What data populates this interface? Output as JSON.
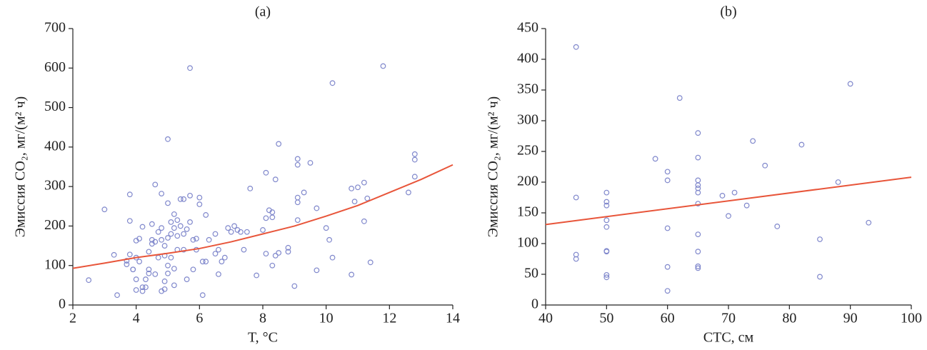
{
  "chart_data": [
    {
      "type": "scatter",
      "title": "(a)",
      "x_label": "T, °C",
      "y_label": "Эмиссия CO₂, мг/(м² ч)",
      "xlim": [
        2,
        14
      ],
      "xticks": [
        2,
        4,
        6,
        8,
        10,
        12,
        14
      ],
      "ylim": [
        0,
        700
      ],
      "yticks": [
        0,
        100,
        200,
        300,
        400,
        500,
        600,
        700
      ],
      "series": [
        {
          "color": "#8088cc",
          "x": [
            2.5,
            3.0,
            3.3,
            3.4,
            3.7,
            3.7,
            3.8,
            3.8,
            3.8,
            3.9,
            3.9,
            4.0,
            4.0,
            4.0,
            4.0,
            4.1,
            4.1,
            4.2,
            4.2,
            4.2,
            4.3,
            4.3,
            4.4,
            4.4,
            4.4,
            4.5,
            4.5,
            4.5,
            4.6,
            4.6,
            4.6,
            4.7,
            4.7,
            4.8,
            4.8,
            4.8,
            4.8,
            4.9,
            4.9,
            4.9,
            4.9,
            5.0,
            5.0,
            5.0,
            5.0,
            5.0,
            5.1,
            5.1,
            5.1,
            5.2,
            5.2,
            5.2,
            5.2,
            5.3,
            5.3,
            5.3,
            5.4,
            5.4,
            5.5,
            5.5,
            5.5,
            5.6,
            5.6,
            5.7,
            5.7,
            5.7,
            5.8,
            5.8,
            5.9,
            5.9,
            6.0,
            6.0,
            6.1,
            6.1,
            6.2,
            6.2,
            6.3,
            6.5,
            6.5,
            6.6,
            6.6,
            6.7,
            6.8,
            6.9,
            7.0,
            7.1,
            7.2,
            7.3,
            7.4,
            7.5,
            7.6,
            7.8,
            8.0,
            8.1,
            8.1,
            8.1,
            8.2,
            8.3,
            8.3,
            8.3,
            8.4,
            8.4,
            8.5,
            8.5,
            8.8,
            8.8,
            9.0,
            9.1,
            9.1,
            9.1,
            9.1,
            9.1,
            9.3,
            9.5,
            9.7,
            9.7,
            10.0,
            10.1,
            10.2,
            10.2,
            10.8,
            10.8,
            10.9,
            11.0,
            11.2,
            11.2,
            11.3,
            11.4,
            11.8,
            12.6,
            12.8,
            12.8,
            12.8
          ],
          "values": [
            63,
            242,
            127,
            25,
            103,
            112,
            280,
            213,
            128,
            90,
            90,
            163,
            120,
            38,
            65,
            168,
            110,
            198,
            35,
            45,
            45,
            65,
            80,
            90,
            135,
            205,
            165,
            155,
            305,
            160,
            78,
            120,
            185,
            282,
            195,
            165,
            35,
            150,
            125,
            60,
            40,
            420,
            258,
            170,
            100,
            80,
            210,
            180,
            120,
            230,
            195,
            92,
            50,
            215,
            175,
            140,
            268,
            200,
            268,
            180,
            140,
            65,
            192,
            600,
            277,
            210,
            165,
            90,
            168,
            140,
            272,
            255,
            25,
            110,
            228,
            110,
            165,
            180,
            130,
            78,
            140,
            110,
            120,
            195,
            185,
            200,
            190,
            185,
            140,
            185,
            295,
            75,
            190,
            335,
            220,
            130,
            240,
            235,
            222,
            100,
            318,
            125,
            408,
            132,
            135,
            145,
            48,
            370,
            355,
            272,
            260,
            215,
            285,
            360,
            245,
            88,
            195,
            165,
            562,
            120,
            295,
            77,
            262,
            298,
            310,
            212,
            270,
            108,
            605,
            285,
            382,
            368,
            325
          ]
        }
      ],
      "fit": {
        "color": "#e8553a",
        "x": [
          2,
          3,
          4,
          5,
          6,
          7,
          8,
          9,
          10,
          11,
          12,
          13,
          14
        ],
        "values": [
          93,
          106,
          120,
          131,
          143,
          160,
          180,
          200,
          225,
          252,
          285,
          318,
          355
        ]
      }
    },
    {
      "type": "scatter",
      "title": "(b)",
      "x_label": "СТС, см",
      "y_label": "Эмиссия CO₂, мг/(м² ч)",
      "xlim": [
        40,
        100
      ],
      "xticks": [
        40,
        50,
        60,
        70,
        80,
        90,
        100
      ],
      "ylim": [
        0,
        450
      ],
      "yticks": [
        0,
        50,
        100,
        150,
        200,
        250,
        300,
        350,
        400,
        450
      ],
      "series": [
        {
          "color": "#8088cc",
          "x": [
            45,
            45,
            45,
            45,
            50,
            50,
            50,
            50,
            50,
            50,
            50,
            50,
            50,
            58,
            60,
            60,
            60,
            60,
            60,
            62,
            65,
            65,
            65,
            65,
            65,
            65,
            65,
            65,
            65,
            65,
            65,
            69,
            70,
            71,
            73,
            74,
            76,
            78,
            82,
            85,
            85,
            88,
            90,
            93
          ],
          "values": [
            420,
            175,
            82,
            75,
            183,
            168,
            162,
            138,
            127,
            88,
            87,
            49,
            45,
            238,
            217,
            203,
            125,
            62,
            23,
            337,
            280,
            240,
            203,
            195,
            190,
            183,
            165,
            115,
            87,
            63,
            60,
            178,
            145,
            183,
            162,
            267,
            227,
            128,
            261,
            107,
            46,
            200,
            360,
            134
          ]
        }
      ],
      "fit": {
        "color": "#e8553a",
        "x": [
          40,
          100
        ],
        "values": [
          131,
          208
        ]
      }
    }
  ]
}
